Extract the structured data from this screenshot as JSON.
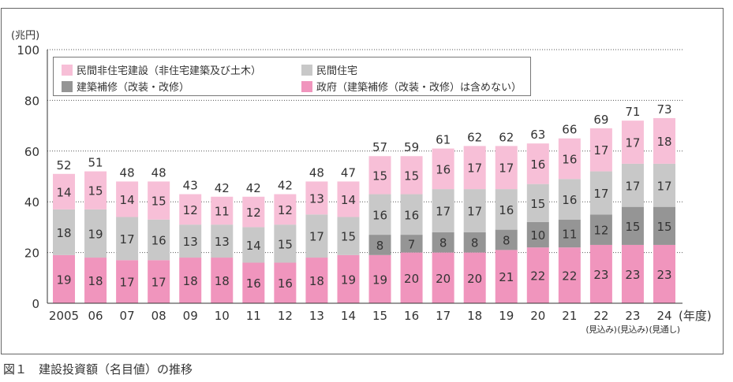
{
  "caption": "図１　建設投資額（名目値）の推移",
  "chart_data": {
    "type": "bar",
    "stacked": true,
    "ylabel": "(兆円)",
    "xunit": "(年度)",
    "ylim": [
      0,
      100
    ],
    "yticks": [
      0,
      20,
      40,
      60,
      80,
      100
    ],
    "categories": [
      "2005",
      "06",
      "07",
      "08",
      "09",
      "10",
      "11",
      "12",
      "13",
      "14",
      "15",
      "16",
      "17",
      "18",
      "19",
      "20",
      "21",
      "22",
      "23",
      "24"
    ],
    "category_notes": [
      "",
      "",
      "",
      "",
      "",
      "",
      "",
      "",
      "",
      "",
      "",
      "",
      "",
      "",
      "",
      "",
      "",
      "(見込み)",
      "(見込み)",
      "(見通し)"
    ],
    "totals": [
      52,
      51,
      48,
      48,
      43,
      42,
      42,
      42,
      48,
      47,
      57,
      59,
      61,
      62,
      62,
      63,
      66,
      69,
      71,
      73
    ],
    "legend_placement": "top-left",
    "series": [
      {
        "name": "政府（建築補修（改装・改修）は含めない）",
        "color": "#f095bd",
        "values": [
          19,
          18,
          17,
          17,
          18,
          18,
          16,
          16,
          18,
          19,
          19,
          20,
          20,
          20,
          21,
          22,
          22,
          23,
          23,
          23
        ]
      },
      {
        "name": "建築補修（改装・改修）",
        "color": "#959595",
        "values": [
          0,
          0,
          0,
          0,
          0,
          0,
          0,
          0,
          0,
          0,
          8,
          7,
          8,
          8,
          8,
          10,
          11,
          12,
          15,
          15
        ]
      },
      {
        "name": "民間住宅",
        "color": "#c8c8c8",
        "values": [
          18,
          19,
          17,
          16,
          13,
          13,
          14,
          15,
          17,
          15,
          16,
          16,
          17,
          17,
          16,
          15,
          16,
          17,
          17,
          17
        ]
      },
      {
        "name": "民間非住宅建設（非住宅建築及び土木）",
        "color": "#f7bfd7",
        "values": [
          14,
          15,
          14,
          15,
          12,
          11,
          12,
          12,
          13,
          14,
          15,
          15,
          16,
          17,
          17,
          16,
          16,
          17,
          17,
          18
        ]
      }
    ]
  },
  "legend": [
    {
      "label": "民間非住宅建設（非住宅建築及び土木）",
      "color": "#f7bfd7"
    },
    {
      "label": "民間住宅",
      "color": "#c8c8c8"
    },
    {
      "label": "建築補修（改装・改修）",
      "color": "#959595"
    },
    {
      "label": "政府（建築補修（改装・改修）は含めない）",
      "color": "#f095bd"
    }
  ]
}
